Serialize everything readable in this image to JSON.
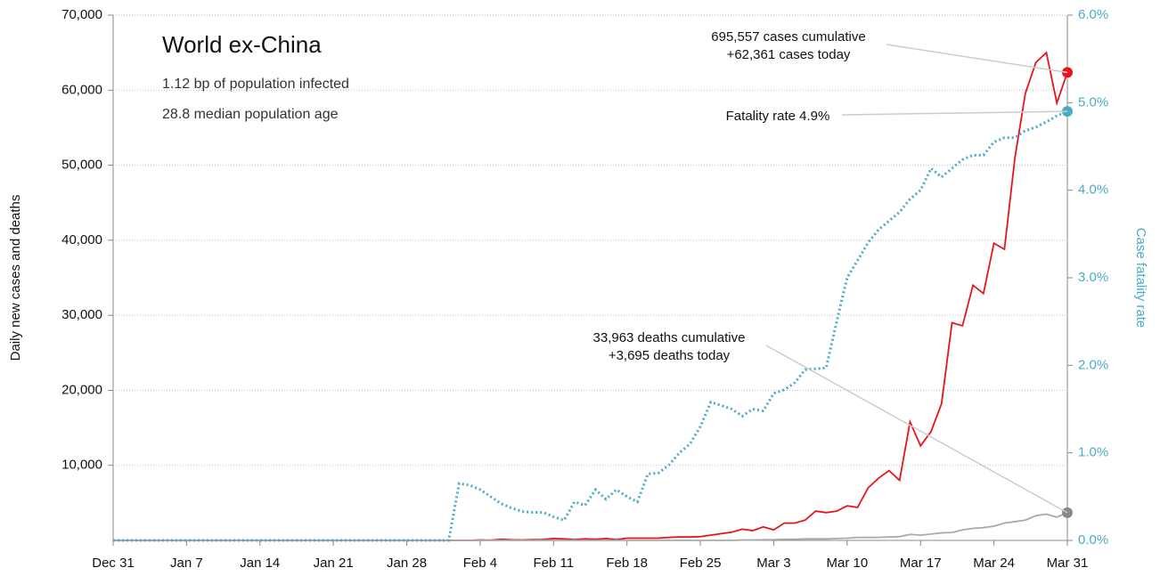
{
  "chart_data": {
    "type": "line",
    "title": "World ex-China",
    "subtitle": [
      "1.12 bp of population infected",
      "28.8 median population age"
    ],
    "y_label": "Daily new cases and deaths",
    "y2_label": "Case fatality rate",
    "categories": [
      "Dec 31",
      null,
      null,
      null,
      null,
      null,
      null,
      "Jan 7",
      null,
      null,
      null,
      null,
      null,
      null,
      "Jan 14",
      null,
      null,
      null,
      null,
      null,
      null,
      "Jan 21",
      null,
      null,
      null,
      null,
      null,
      null,
      "Jan 28",
      null,
      null,
      null,
      null,
      null,
      null,
      "Feb 4",
      null,
      null,
      null,
      null,
      null,
      null,
      "Feb 11",
      null,
      null,
      null,
      null,
      null,
      null,
      "Feb 18",
      null,
      null,
      null,
      null,
      null,
      null,
      "Feb 25",
      null,
      null,
      null,
      null,
      null,
      null,
      "Mar 3",
      null,
      null,
      null,
      null,
      null,
      null,
      "Mar 10",
      null,
      null,
      null,
      null,
      null,
      null,
      "Mar 17",
      null,
      null,
      null,
      null,
      null,
      null,
      "Mar 24",
      null,
      null,
      null,
      null,
      null,
      null,
      "Mar 31"
    ],
    "series": [
      {
        "name": "cases",
        "color": "#e8141c",
        "style": "solid",
        "values": [
          0,
          0,
          0,
          0,
          0,
          0,
          0,
          0,
          0,
          0,
          0,
          0,
          0,
          0,
          0,
          0,
          0,
          0,
          0,
          0,
          0,
          0,
          0,
          0,
          0,
          0,
          0,
          0,
          0,
          0,
          0,
          0,
          0,
          0,
          0,
          50,
          30,
          150,
          80,
          50,
          100,
          120,
          250,
          200,
          100,
          200,
          150,
          250,
          100,
          300,
          300,
          300,
          300,
          400,
          450,
          450,
          500,
          700,
          900,
          1100,
          1500,
          1300,
          1800,
          1400,
          2300,
          2300,
          2700,
          3900,
          3700,
          3900,
          4600,
          4400,
          7000,
          8300,
          9300,
          8000,
          15800,
          12600,
          14500,
          18200,
          29000,
          28600,
          34000,
          32900,
          39600,
          38800,
          51000,
          59600,
          63700,
          65000,
          58300,
          62361
        ]
      },
      {
        "name": "deaths",
        "color": "#aaaaaa",
        "dot": "#888888",
        "style": "solid",
        "values": [
          0,
          0,
          0,
          0,
          0,
          0,
          0,
          0,
          0,
          0,
          0,
          0,
          0,
          0,
          0,
          0,
          0,
          0,
          0,
          0,
          0,
          0,
          0,
          0,
          0,
          0,
          0,
          0,
          0,
          0,
          0,
          0,
          0,
          0,
          0,
          0,
          0,
          0,
          0,
          0,
          0,
          0,
          0,
          0,
          0,
          0,
          0,
          0,
          0,
          0,
          0,
          0,
          0,
          0,
          0,
          0,
          0,
          0,
          0,
          0,
          50,
          50,
          80,
          100,
          150,
          150,
          200,
          200,
          200,
          250,
          300,
          400,
          400,
          400,
          450,
          500,
          800,
          700,
          850,
          1000,
          1050,
          1400,
          1600,
          1700,
          1900,
          2300,
          2500,
          2700,
          3300,
          3500,
          3100,
          3695
        ]
      },
      {
        "name": "fatality rate",
        "color": "#4bacc6",
        "style": "dotted",
        "axis": "y2",
        "values": [
          0,
          0,
          0,
          0,
          0,
          0,
          0,
          0,
          0,
          0,
          0,
          0,
          0,
          0,
          0,
          0,
          0,
          0,
          0,
          0,
          0,
          0,
          0,
          0,
          0,
          0,
          0,
          0,
          0,
          0,
          0,
          0,
          0,
          0.65,
          0.63,
          0.58,
          0.5,
          0.42,
          0.37,
          0.33,
          0.32,
          0.32,
          0.27,
          0.23,
          0.44,
          0.4,
          0.58,
          0.47,
          0.58,
          0.5,
          0.44,
          0.76,
          0.77,
          0.86,
          1.0,
          1.1,
          1.3,
          1.58,
          1.54,
          1.5,
          1.42,
          1.5,
          1.48,
          1.68,
          1.72,
          1.8,
          1.95,
          1.96,
          1.97,
          2.5,
          3.0,
          3.2,
          3.4,
          3.55,
          3.65,
          3.75,
          3.9,
          4.0,
          4.25,
          4.15,
          4.25,
          4.35,
          4.4,
          4.4,
          4.55,
          4.6,
          4.6,
          4.68,
          4.72,
          4.78,
          4.85,
          4.9
        ]
      }
    ],
    "annotations": [
      {
        "series": 0,
        "lines": [
          "695,557 cases cumulative",
          "+62,361 cases today"
        ]
      },
      {
        "series": 2,
        "lines": [
          "Fatality rate 4.9%"
        ]
      },
      {
        "series": 1,
        "lines": [
          "33,963 deaths cumulative",
          "+3,695 deaths today"
        ]
      }
    ],
    "ylim": [
      0,
      70000
    ],
    "yticks": [
      {
        "value": 10000,
        "label": "10,000"
      },
      {
        "value": 20000,
        "label": "20,000"
      },
      {
        "value": 30000,
        "label": "30,000"
      },
      {
        "value": 40000,
        "label": "40,000"
      },
      {
        "value": 50000,
        "label": "50,000"
      },
      {
        "value": 60000,
        "label": "60,000"
      },
      {
        "value": 70000,
        "label": "70,000"
      }
    ],
    "y2lim": [
      0,
      6
    ],
    "y2ticks": [
      {
        "value": 0,
        "label": "0.0%"
      },
      {
        "value": 1,
        "label": "1.0%"
      },
      {
        "value": 2,
        "label": "2.0%"
      },
      {
        "value": 3,
        "label": "3.0%"
      },
      {
        "value": 4,
        "label": "4.0%"
      },
      {
        "value": 5,
        "label": "5.0%"
      },
      {
        "value": 6,
        "label": "6.0%"
      }
    ],
    "grid": true
  }
}
